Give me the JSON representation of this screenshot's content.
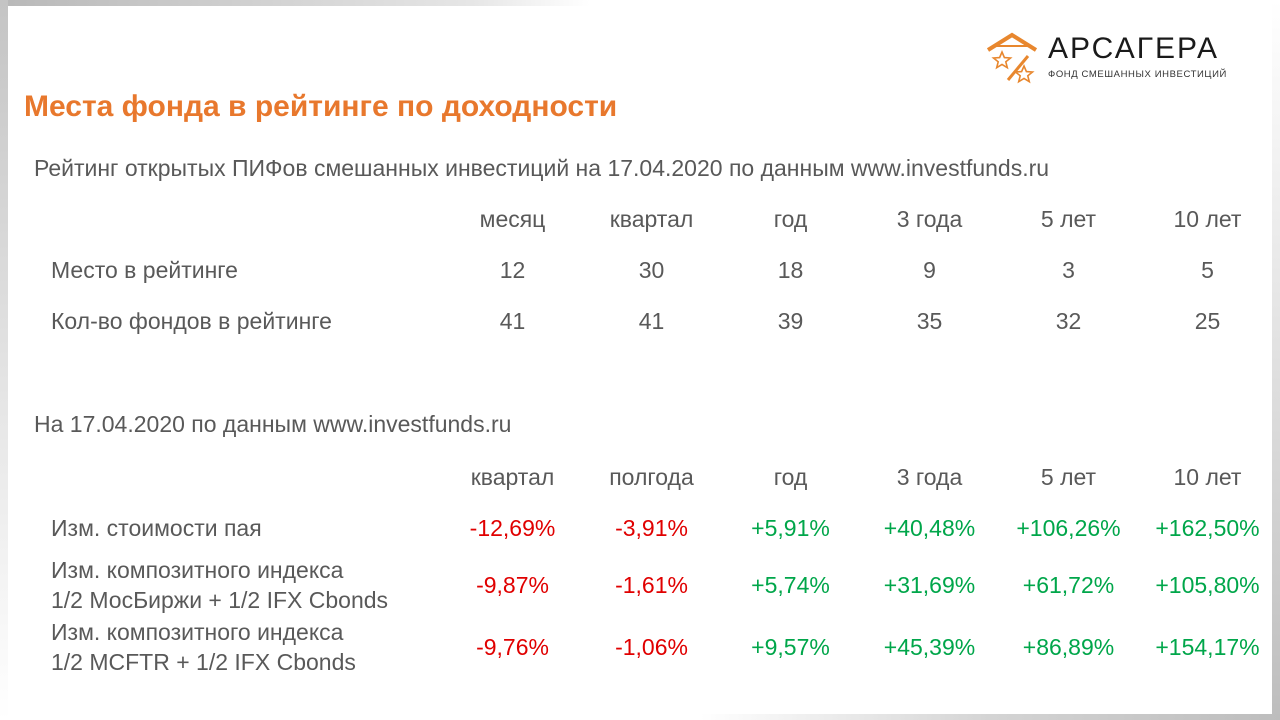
{
  "logo": {
    "name": "АРСАГЕРА",
    "subtitle": "фонд смешанных инвестиций",
    "mark_color": "#e8872e"
  },
  "title": "Места фонда в рейтинге по доходности",
  "rating": {
    "caption": "Рейтинг открытых ПИФов смешанных инвестиций на 17.04.2020 по данным www.investfunds.ru",
    "columns": [
      "месяц",
      "квартал",
      "год",
      "3 года",
      "5 лет",
      "10 лет"
    ],
    "rows": [
      {
        "label": "Место в рейтинге",
        "values": [
          "12",
          "30",
          "18",
          "9",
          "3",
          "5"
        ]
      },
      {
        "label": "Кол-во фондов в рейтинге",
        "values": [
          "41",
          "41",
          "39",
          "35",
          "32",
          "25"
        ]
      }
    ]
  },
  "returns": {
    "caption": "На 17.04.2020 по данным www.investfunds.ru",
    "columns": [
      "квартал",
      "полгода",
      "год",
      "3 года",
      "5 лет",
      "10 лет"
    ],
    "rows": [
      {
        "label": [
          "Изм. стоимости пая"
        ],
        "values": [
          "-12,69%",
          "-3,91%",
          "+5,91%",
          "+40,48%",
          "+106,26%",
          "+162,50%"
        ]
      },
      {
        "label": [
          "Изм. композитного индекса",
          "1/2 МосБиржи + 1/2 IFX Cbonds"
        ],
        "values": [
          "-9,87%",
          "-1,61%",
          "+5,74%",
          "+31,69%",
          "+61,72%",
          "+105,80%"
        ]
      },
      {
        "label": [
          "Изм. композитного индекса",
          "1/2 MCFTR + 1/2 IFX Cbonds"
        ],
        "values": [
          "-9,76%",
          "-1,06%",
          "+9,57%",
          "+45,39%",
          "+86,89%",
          "+154,17%"
        ]
      }
    ]
  },
  "colors": {
    "title": "#e8782d",
    "text": "#595959",
    "negative": "#e00000",
    "positive": "#00a64a"
  }
}
